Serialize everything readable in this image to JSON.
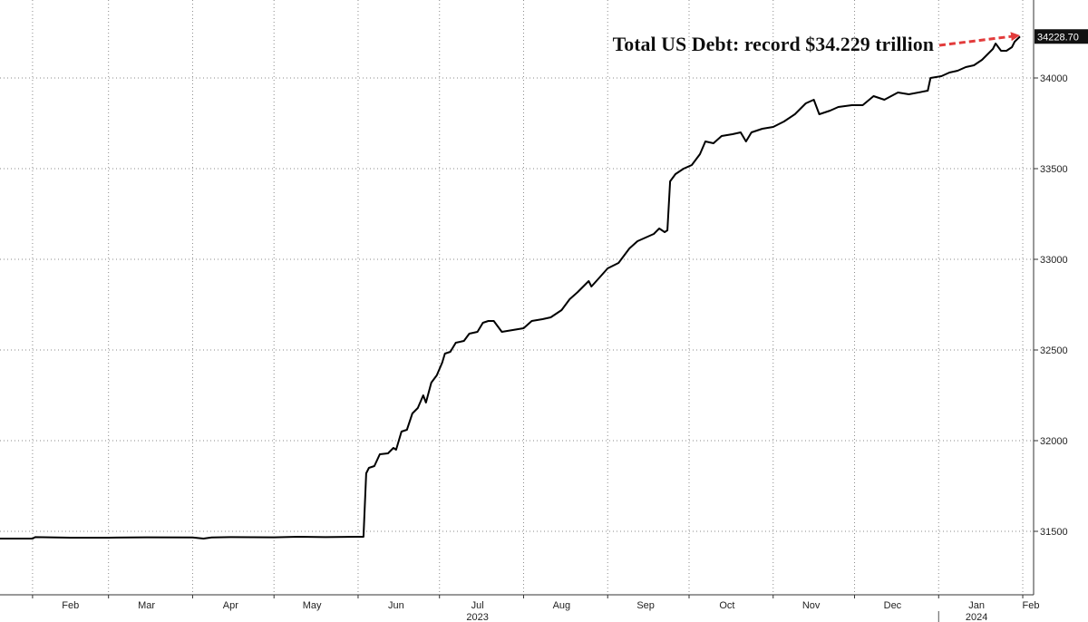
{
  "chart_data": {
    "type": "line",
    "title": "",
    "xlabel": "",
    "ylabel": "",
    "x_range": [
      "2023-01-20",
      "2024-02-05"
    ],
    "ylim": [
      31150,
      34430
    ],
    "y_ticks": [
      31500,
      32000,
      32500,
      33000,
      33500,
      34000
    ],
    "y_tick_labels": [
      "31500",
      "32000",
      "32500",
      "33000",
      "33500",
      "34000"
    ],
    "x_month_ticks": [
      "2023-02-01",
      "2023-03-01",
      "2023-04-01",
      "2023-05-01",
      "2023-06-01",
      "2023-07-01",
      "2023-08-01",
      "2023-09-01",
      "2023-10-01",
      "2023-11-01",
      "2023-12-01",
      "2024-01-01",
      "2024-02-01"
    ],
    "x_month_labels": [
      {
        "label": "Feb",
        "date": "2023-02-15"
      },
      {
        "label": "Mar",
        "date": "2023-03-15"
      },
      {
        "label": "Apr",
        "date": "2023-04-15"
      },
      {
        "label": "May",
        "date": "2023-05-15"
      },
      {
        "label": "Jun",
        "date": "2023-06-15"
      },
      {
        "label": "Jul",
        "date": "2023-07-15"
      },
      {
        "label": "Aug",
        "date": "2023-08-15"
      },
      {
        "label": "Sep",
        "date": "2023-09-15"
      },
      {
        "label": "Oct",
        "date": "2023-10-15"
      },
      {
        "label": "Nov",
        "date": "2023-11-15"
      },
      {
        "label": "Dec",
        "date": "2023-12-15"
      },
      {
        "label": "Jan",
        "date": "2024-01-15"
      },
      {
        "label": "Feb",
        "date": "2024-02-04"
      }
    ],
    "year_labels": [
      {
        "label": "2023",
        "date": "2023-07-15"
      },
      {
        "label": "2024",
        "date": "2024-01-15"
      }
    ],
    "year_divider": "2024-01-01",
    "grid": true,
    "line_color": "#000000",
    "annotation": {
      "text": "Total US Debt: record $34.229 trillion",
      "arrow_color": "#e23b3b",
      "target": {
        "x": "2024-01-31",
        "y": 34228.7
      }
    },
    "last_value_label": "34228.70",
    "series": [
      {
        "values": [
          {
            "x": "2023-01-20",
            "y": 31460
          },
          {
            "x": "2023-02-01",
            "y": 31460
          },
          {
            "x": "2023-02-02",
            "y": 31468
          },
          {
            "x": "2023-02-15",
            "y": 31465
          },
          {
            "x": "2023-03-01",
            "y": 31465
          },
          {
            "x": "2023-03-15",
            "y": 31467
          },
          {
            "x": "2023-04-01",
            "y": 31466
          },
          {
            "x": "2023-04-05",
            "y": 31460
          },
          {
            "x": "2023-04-08",
            "y": 31466
          },
          {
            "x": "2023-04-15",
            "y": 31468
          },
          {
            "x": "2023-05-01",
            "y": 31467
          },
          {
            "x": "2023-05-10",
            "y": 31470
          },
          {
            "x": "2023-05-20",
            "y": 31468
          },
          {
            "x": "2023-05-31",
            "y": 31470
          },
          {
            "x": "2023-06-03",
            "y": 31470
          },
          {
            "x": "2023-06-04",
            "y": 31820
          },
          {
            "x": "2023-06-05",
            "y": 31850
          },
          {
            "x": "2023-06-07",
            "y": 31860
          },
          {
            "x": "2023-06-09",
            "y": 31925
          },
          {
            "x": "2023-06-12",
            "y": 31930
          },
          {
            "x": "2023-06-14",
            "y": 31960
          },
          {
            "x": "2023-06-15",
            "y": 31950
          },
          {
            "x": "2023-06-17",
            "y": 32050
          },
          {
            "x": "2023-06-19",
            "y": 32060
          },
          {
            "x": "2023-06-21",
            "y": 32150
          },
          {
            "x": "2023-06-23",
            "y": 32180
          },
          {
            "x": "2023-06-25",
            "y": 32250
          },
          {
            "x": "2023-06-26",
            "y": 32210
          },
          {
            "x": "2023-06-28",
            "y": 32320
          },
          {
            "x": "2023-06-30",
            "y": 32360
          },
          {
            "x": "2023-07-02",
            "y": 32430
          },
          {
            "x": "2023-07-03",
            "y": 32480
          },
          {
            "x": "2023-07-05",
            "y": 32490
          },
          {
            "x": "2023-07-07",
            "y": 32540
          },
          {
            "x": "2023-07-10",
            "y": 32550
          },
          {
            "x": "2023-07-12",
            "y": 32590
          },
          {
            "x": "2023-07-15",
            "y": 32600
          },
          {
            "x": "2023-07-17",
            "y": 32650
          },
          {
            "x": "2023-07-19",
            "y": 32660
          },
          {
            "x": "2023-07-21",
            "y": 32660
          },
          {
            "x": "2023-07-24",
            "y": 32600
          },
          {
            "x": "2023-07-28",
            "y": 32610
          },
          {
            "x": "2023-08-01",
            "y": 32620
          },
          {
            "x": "2023-08-04",
            "y": 32660
          },
          {
            "x": "2023-08-08",
            "y": 32670
          },
          {
            "x": "2023-08-11",
            "y": 32680
          },
          {
            "x": "2023-08-15",
            "y": 32720
          },
          {
            "x": "2023-08-18",
            "y": 32780
          },
          {
            "x": "2023-08-21",
            "y": 32820
          },
          {
            "x": "2023-08-25",
            "y": 32880
          },
          {
            "x": "2023-08-26",
            "y": 32850
          },
          {
            "x": "2023-08-29",
            "y": 32900
          },
          {
            "x": "2023-09-01",
            "y": 32950
          },
          {
            "x": "2023-09-05",
            "y": 32980
          },
          {
            "x": "2023-09-09",
            "y": 33060
          },
          {
            "x": "2023-09-12",
            "y": 33100
          },
          {
            "x": "2023-09-15",
            "y": 33120
          },
          {
            "x": "2023-09-18",
            "y": 33140
          },
          {
            "x": "2023-09-20",
            "y": 33170
          },
          {
            "x": "2023-09-22",
            "y": 33150
          },
          {
            "x": "2023-09-23",
            "y": 33160
          },
          {
            "x": "2023-09-24",
            "y": 33430
          },
          {
            "x": "2023-09-26",
            "y": 33470
          },
          {
            "x": "2023-09-29",
            "y": 33500
          },
          {
            "x": "2023-10-02",
            "y": 33520
          },
          {
            "x": "2023-10-05",
            "y": 33580
          },
          {
            "x": "2023-10-07",
            "y": 33650
          },
          {
            "x": "2023-10-10",
            "y": 33640
          },
          {
            "x": "2023-10-13",
            "y": 33680
          },
          {
            "x": "2023-10-17",
            "y": 33690
          },
          {
            "x": "2023-10-20",
            "y": 33700
          },
          {
            "x": "2023-10-22",
            "y": 33650
          },
          {
            "x": "2023-10-24",
            "y": 33700
          },
          {
            "x": "2023-10-28",
            "y": 33720
          },
          {
            "x": "2023-11-01",
            "y": 33730
          },
          {
            "x": "2023-11-05",
            "y": 33760
          },
          {
            "x": "2023-11-09",
            "y": 33800
          },
          {
            "x": "2023-11-13",
            "y": 33860
          },
          {
            "x": "2023-11-16",
            "y": 33880
          },
          {
            "x": "2023-11-18",
            "y": 33800
          },
          {
            "x": "2023-11-22",
            "y": 33820
          },
          {
            "x": "2023-11-25",
            "y": 33840
          },
          {
            "x": "2023-11-30",
            "y": 33850
          },
          {
            "x": "2023-12-04",
            "y": 33850
          },
          {
            "x": "2023-12-08",
            "y": 33900
          },
          {
            "x": "2023-12-12",
            "y": 33880
          },
          {
            "x": "2023-12-17",
            "y": 33920
          },
          {
            "x": "2023-12-21",
            "y": 33910
          },
          {
            "x": "2023-12-28",
            "y": 33930
          },
          {
            "x": "2023-12-29",
            "y": 34000
          },
          {
            "x": "2024-01-02",
            "y": 34010
          },
          {
            "x": "2024-01-05",
            "y": 34030
          },
          {
            "x": "2024-01-08",
            "y": 34040
          },
          {
            "x": "2024-01-11",
            "y": 34060
          },
          {
            "x": "2024-01-14",
            "y": 34070
          },
          {
            "x": "2024-01-17",
            "y": 34100
          },
          {
            "x": "2024-01-19",
            "y": 34130
          },
          {
            "x": "2024-01-21",
            "y": 34160
          },
          {
            "x": "2024-01-22",
            "y": 34190
          },
          {
            "x": "2024-01-24",
            "y": 34150
          },
          {
            "x": "2024-01-26",
            "y": 34150
          },
          {
            "x": "2024-01-28",
            "y": 34170
          },
          {
            "x": "2024-01-29",
            "y": 34200
          },
          {
            "x": "2024-01-31",
            "y": 34228.7
          }
        ]
      }
    ]
  }
}
